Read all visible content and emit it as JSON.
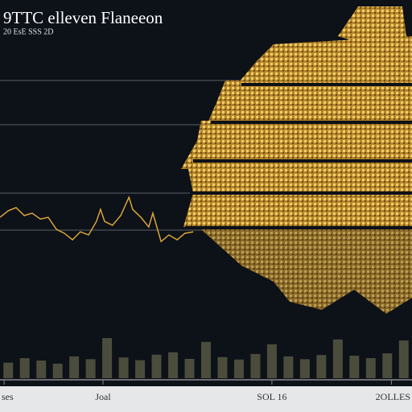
{
  "chart_data": {
    "type": "line",
    "title": "9TTC elleven Flaneeon",
    "subtitle": "20 EsE SSS 2D",
    "xlim": [
      0,
      100
    ],
    "xticks": [
      {
        "value": 1,
        "label": "ses"
      },
      {
        "value": 25,
        "label": "Joal"
      },
      {
        "value": 66,
        "label": "SOL 16"
      },
      {
        "value": 95,
        "label": "2OLLES"
      }
    ],
    "ylim": [
      0,
      100
    ],
    "series": [
      {
        "color": "#d9a63a",
        "x": [
          0,
          2,
          3.9,
          5.9,
          7.8,
          9.8,
          11.7,
          13.7,
          15.6,
          17.6,
          19.5,
          21.5,
          23.4,
          24.4,
          25.4,
          27.3,
          29.3,
          31.3,
          32.2,
          34.2,
          36.1,
          37.1,
          39.1,
          41,
          43,
          44.9,
          46.9
        ],
        "values": [
          46.5,
          48.4,
          49.3,
          47,
          47.7,
          46,
          46.5,
          43,
          41.9,
          40,
          42.3,
          41.4,
          45.3,
          48.8,
          45.3,
          44.2,
          47,
          52.3,
          48.8,
          46.5,
          43.7,
          47.7,
          39.5,
          41.4,
          40,
          41.9,
          42.3
        ]
      },
      {
        "type": "bar",
        "color": "#4a4d3c",
        "x": [
          2,
          6,
          10,
          14,
          18,
          22,
          26,
          30,
          34,
          38,
          42,
          46,
          50,
          54,
          58,
          62,
          66,
          70,
          74,
          78,
          82,
          86,
          90,
          94,
          98
        ],
        "values": [
          4.5,
          5.8,
          5.1,
          4.2,
          6.3,
          5.5,
          11.6,
          6,
          5.2,
          6.8,
          7.5,
          5.6,
          10.5,
          6.1,
          5.4,
          7,
          9.8,
          6.3,
          5.5,
          6.7,
          11.2,
          6.5,
          5.8,
          7.2,
          10.9
        ]
      }
    ]
  }
}
